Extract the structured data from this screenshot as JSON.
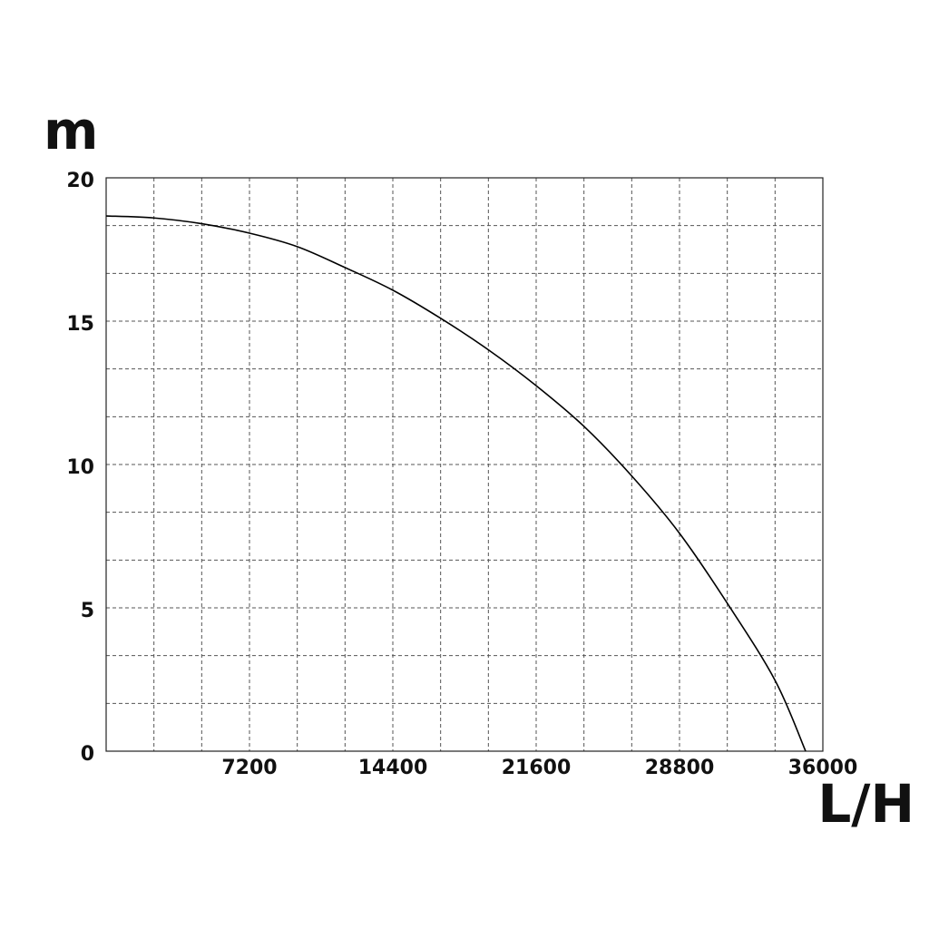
{
  "chart_data": {
    "type": "line",
    "y_label": "m",
    "x_label": "L/H",
    "xlim": [
      0,
      36000
    ],
    "ylim": [
      0,
      20
    ],
    "xticks": [
      7200,
      14400,
      21600,
      28800,
      36000
    ],
    "yticks": [
      0,
      5,
      10,
      15,
      20
    ],
    "grid": true,
    "series": [
      {
        "color": "#000000",
        "x": [
          0,
          2400,
          4800,
          7200,
          9600,
          12000,
          14400,
          16800,
          19200,
          21600,
          24000,
          26400,
          28800,
          31200,
          33600,
          35135
        ],
        "values": [
          18.67,
          18.6,
          18.4,
          18.07,
          17.6,
          16.87,
          16.08,
          15.1,
          14.0,
          12.75,
          11.33,
          9.6,
          7.6,
          5.16,
          2.47,
          0
        ]
      }
    ]
  }
}
